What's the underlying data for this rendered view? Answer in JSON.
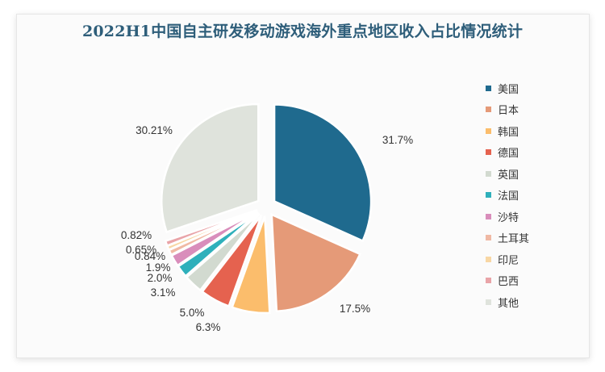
{
  "chart_data": {
    "type": "pie",
    "title": "2022H1中国自主研发移动游戏海外重点地区收入占比情况统计",
    "categories": [
      "美国",
      "日本",
      "韩国",
      "德国",
      "英国",
      "法国",
      "沙特",
      "土耳其",
      "印尼",
      "巴西",
      "其他"
    ],
    "values": [
      31.7,
      17.5,
      6.3,
      5.0,
      3.1,
      2.0,
      1.9,
      0.84,
      0.65,
      0.82,
      30.21
    ],
    "labels": [
      "31.7%",
      "17.5%",
      "6.3%",
      "5.0%",
      "3.1%",
      "2.0%",
      "1.9%",
      "0.84%",
      "0.65%",
      "0.82%",
      "30.21%"
    ],
    "colors": [
      "#1f6a8e",
      "#e59a78",
      "#fbbd6c",
      "#e5624f",
      "#d2dad0",
      "#2fb0bb",
      "#d98dbb",
      "#f0b9a4",
      "#f8d7a4",
      "#e9a4a8",
      "#dfe3dc"
    ],
    "legend_position": "right",
    "start_angle": "12 o'clock, clockwise",
    "exploded": true
  },
  "title": "2022H1中国自主研发移动游戏海外重点地区收入占比情况统计",
  "legend": [
    {
      "label": "美国",
      "color": "#1f6a8e"
    },
    {
      "label": "日本",
      "color": "#e59a78"
    },
    {
      "label": "韩国",
      "color": "#fbbd6c"
    },
    {
      "label": "德国",
      "color": "#e5624f"
    },
    {
      "label": "英国",
      "color": "#d2dad0"
    },
    {
      "label": "法国",
      "color": "#2fb0bb"
    },
    {
      "label": "沙特",
      "color": "#d98dbb"
    },
    {
      "label": "土耳其",
      "color": "#f0b9a4"
    },
    {
      "label": "印尼",
      "color": "#f8d7a4"
    },
    {
      "label": "巴西",
      "color": "#e9a4a8"
    },
    {
      "label": "其他",
      "color": "#dfe3dc"
    }
  ]
}
